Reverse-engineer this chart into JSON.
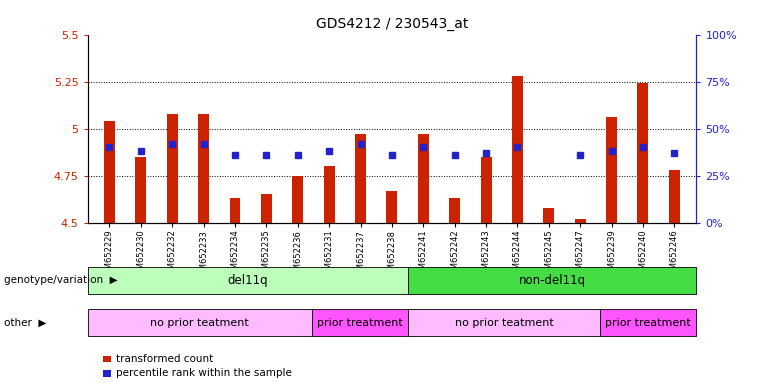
{
  "title": "GDS4212 / 230543_at",
  "samples": [
    "GSM652229",
    "GSM652230",
    "GSM652232",
    "GSM652233",
    "GSM652234",
    "GSM652235",
    "GSM652236",
    "GSM652231",
    "GSM652237",
    "GSM652238",
    "GSM652241",
    "GSM652242",
    "GSM652243",
    "GSM652244",
    "GSM652245",
    "GSM652247",
    "GSM652239",
    "GSM652240",
    "GSM652246"
  ],
  "red_values": [
    5.04,
    4.85,
    5.08,
    5.08,
    4.63,
    4.65,
    4.75,
    4.8,
    4.97,
    4.67,
    4.97,
    4.63,
    4.85,
    5.28,
    4.58,
    4.52,
    5.06,
    5.24,
    4.78
  ],
  "blue_values": [
    4.9,
    4.88,
    4.92,
    4.92,
    4.86,
    4.86,
    4.86,
    4.88,
    4.92,
    4.86,
    4.9,
    4.86,
    4.87,
    4.9,
    null,
    4.86,
    4.88,
    4.9,
    4.87
  ],
  "ylim_left": [
    4.5,
    5.5
  ],
  "ylim_right": [
    0,
    100
  ],
  "yticks_left": [
    4.5,
    4.75,
    5.0,
    5.25,
    5.5
  ],
  "ytick_labels_left": [
    "4.5",
    "4.75",
    "5",
    "5.25",
    "5.5"
  ],
  "yticks_right": [
    0,
    25,
    50,
    75,
    100
  ],
  "ytick_labels_right": [
    "0%",
    "25%",
    "50%",
    "75%",
    "100%"
  ],
  "hlines": [
    4.75,
    5.0,
    5.25
  ],
  "bar_color": "#cc2200",
  "dot_color": "#2222cc",
  "bar_width": 0.35,
  "baseline": 4.5,
  "genotype_labels": [
    {
      "text": "del11q",
      "start": 0,
      "end": 9,
      "color": "#bbffbb"
    },
    {
      "text": "non-del11q",
      "start": 10,
      "end": 18,
      "color": "#44dd44"
    }
  ],
  "other_labels": [
    {
      "text": "no prior teatment",
      "start": 0,
      "end": 6,
      "color": "#ffbbff"
    },
    {
      "text": "prior treatment",
      "start": 7,
      "end": 9,
      "color": "#ff55ff"
    },
    {
      "text": "no prior teatment",
      "start": 10,
      "end": 15,
      "color": "#ffbbff"
    },
    {
      "text": "prior treatment",
      "start": 16,
      "end": 18,
      "color": "#ff55ff"
    }
  ],
  "legend_red": "transformed count",
  "legend_blue": "percentile rank within the sample",
  "left_label_color": "#cc2200",
  "right_label_color": "#2222cc",
  "genotype_row_label": "genotype/variation",
  "other_row_label": "other",
  "background_color": "#ffffff",
  "plot_bg_color": "#ffffff"
}
